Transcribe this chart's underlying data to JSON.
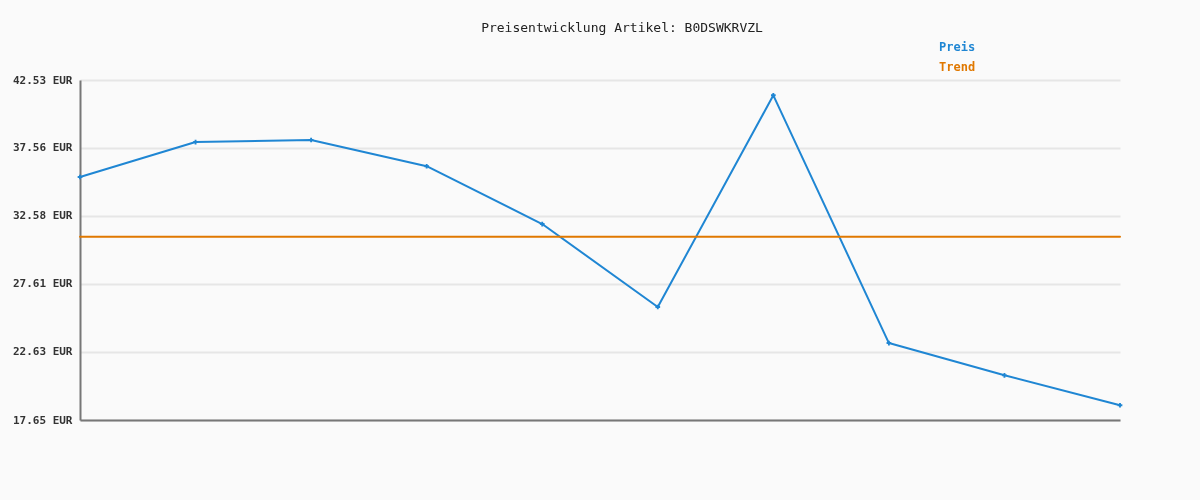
{
  "chart_data": {
    "type": "line",
    "title": "Preisentwicklung Artikel: B0DSWKRVZL",
    "categories": [
      null,
      null,
      null,
      null,
      null,
      null,
      null,
      null,
      null,
      null
    ],
    "series": [
      {
        "name": "Preis",
        "color": "#1f86d3",
        "marker": "cross",
        "values": [
          35.43,
          37.99,
          38.14,
          36.22,
          31.99,
          25.92,
          41.41,
          23.28,
          20.92,
          18.73
        ]
      },
      {
        "name": "Trend",
        "color": "#e07800",
        "values": [
          31.06,
          31.06,
          31.06,
          31.06,
          31.06,
          31.06,
          31.06,
          31.06,
          31.06,
          31.06
        ]
      }
    ],
    "ylim": [
      17.65,
      42.53
    ],
    "yticks": [
      {
        "value": 17.65,
        "label": "17.65 EUR"
      },
      {
        "value": 22.63,
        "label": "22.63 EUR"
      },
      {
        "value": 27.61,
        "label": "27.61 EUR"
      },
      {
        "value": 32.58,
        "label": "32.58 EUR"
      },
      {
        "value": 37.56,
        "label": "37.56 EUR"
      },
      {
        "value": 42.53,
        "label": "42.53 EUR"
      }
    ],
    "grid": "y",
    "legend": "top right",
    "tick_labels": "y"
  }
}
